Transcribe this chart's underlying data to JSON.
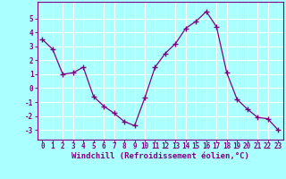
{
  "x": [
    0,
    1,
    2,
    3,
    4,
    5,
    6,
    7,
    8,
    9,
    10,
    11,
    12,
    13,
    14,
    15,
    16,
    17,
    18,
    19,
    20,
    21,
    22,
    23
  ],
  "y": [
    3.5,
    2.8,
    1.0,
    1.1,
    1.5,
    -0.6,
    -1.3,
    -1.8,
    -2.4,
    -2.7,
    -0.7,
    1.5,
    2.5,
    3.2,
    4.3,
    4.8,
    5.5,
    4.4,
    1.1,
    -0.8,
    -1.5,
    -2.1,
    -2.2,
    -3.0
  ],
  "line_color": "#800080",
  "marker": "P",
  "bg_color": "#aaffff",
  "grid_color": "#88dddd",
  "xlabel": "Windchill (Refroidissement éolien,°C)",
  "ylabel_ticks": [
    -3,
    -2,
    -1,
    0,
    1,
    2,
    3,
    4,
    5
  ],
  "xlim": [
    -0.5,
    23.5
  ],
  "ylim": [
    -3.7,
    6.2
  ],
  "xtick_labels": [
    "0",
    "1",
    "2",
    "3",
    "4",
    "5",
    "6",
    "7",
    "8",
    "9",
    "10",
    "11",
    "12",
    "13",
    "14",
    "15",
    "16",
    "17",
    "18",
    "19",
    "20",
    "21",
    "22",
    "23"
  ],
  "font_color": "#800080",
  "tick_fontsize": 5.5,
  "xlabel_fontsize": 6.5
}
